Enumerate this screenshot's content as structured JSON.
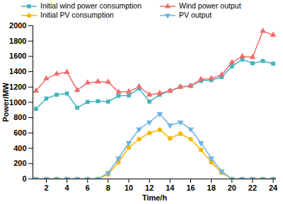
{
  "chart_data": {
    "type": "line",
    "x_label": "Time/h",
    "y_label": "Power/MW",
    "x": [
      1,
      2,
      3,
      4,
      5,
      6,
      7,
      8,
      9,
      10,
      11,
      12,
      13,
      14,
      15,
      16,
      17,
      18,
      19,
      20,
      21,
      22,
      23,
      24
    ],
    "series": [
      {
        "name": "Initial wind power consumption",
        "color": "#3fb5bf",
        "marker": "square",
        "values": [
          915,
          1050,
          1100,
          1115,
          930,
          1005,
          1015,
          1010,
          1085,
          1090,
          1180,
          1010,
          1100,
          1150,
          1200,
          1215,
          1280,
          1290,
          1330,
          1470,
          1560,
          1510,
          1540,
          1505
        ]
      },
      {
        "name": "Wind power output",
        "color": "#f26b6b",
        "marker": "triangle",
        "values": [
          1150,
          1310,
          1370,
          1395,
          1160,
          1255,
          1270,
          1265,
          1135,
          1140,
          1205,
          1100,
          1120,
          1150,
          1200,
          1215,
          1300,
          1310,
          1360,
          1520,
          1600,
          1590,
          1930,
          1880
        ]
      },
      {
        "name": "Initial PV consumption",
        "color": "#f5b800",
        "marker": "circle",
        "values": [
          0,
          0,
          0,
          0,
          0,
          0,
          0,
          60,
          220,
          410,
          520,
          600,
          640,
          530,
          590,
          520,
          380,
          220,
          80,
          0,
          0,
          0,
          0,
          0
        ]
      },
      {
        "name": "PV output",
        "color": "#6cb4e8",
        "marker": "triangle-down",
        "values": [
          0,
          0,
          0,
          0,
          0,
          0,
          0,
          80,
          270,
          470,
          650,
          740,
          850,
          700,
          740,
          650,
          470,
          270,
          100,
          0,
          0,
          0,
          0,
          0
        ]
      }
    ],
    "xlim": [
      0.7,
      24.3
    ],
    "xticks": [
      2,
      4,
      6,
      8,
      10,
      12,
      14,
      16,
      18,
      20,
      22,
      24
    ],
    "ylim": [
      0,
      2000
    ],
    "yticks": [
      0,
      200,
      400,
      600,
      800,
      1000,
      1200,
      1400,
      1600,
      1800,
      2000
    ],
    "grid": false,
    "legend": "top"
  }
}
